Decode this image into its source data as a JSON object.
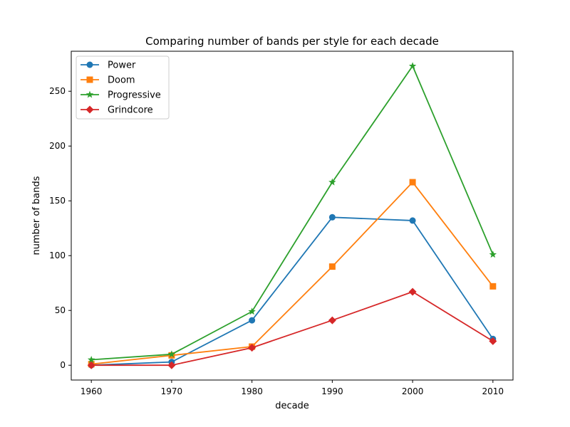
{
  "chart_data": {
    "type": "line",
    "title": "Comparing number of bands per style for each decade",
    "xlabel": "decade",
    "ylabel": "number of bands",
    "x": [
      1960,
      1970,
      1980,
      1990,
      2000,
      2010
    ],
    "xticks": [
      1960,
      1970,
      1980,
      1990,
      2000,
      2010
    ],
    "yticks": [
      0,
      50,
      100,
      150,
      200,
      250
    ],
    "xlim": [
      1957.5,
      2012.5
    ],
    "ylim": [
      -13.5,
      286.5
    ],
    "grid": false,
    "legend": "top-left",
    "series": [
      {
        "name": "Power",
        "marker": "circle",
        "color": "#1f77b4",
        "values": [
          0,
          3,
          41,
          135,
          132,
          24
        ]
      },
      {
        "name": "Doom",
        "marker": "square",
        "color": "#ff7f0e",
        "values": [
          1,
          9,
          17,
          90,
          167,
          72
        ]
      },
      {
        "name": "Progressive",
        "marker": "star",
        "color": "#2ca02c",
        "values": [
          5,
          10,
          49,
          167,
          273,
          101
        ]
      },
      {
        "name": "Grindcore",
        "marker": "diamond",
        "color": "#d62728",
        "values": [
          0,
          0,
          16,
          41,
          67,
          22
        ]
      }
    ]
  }
}
